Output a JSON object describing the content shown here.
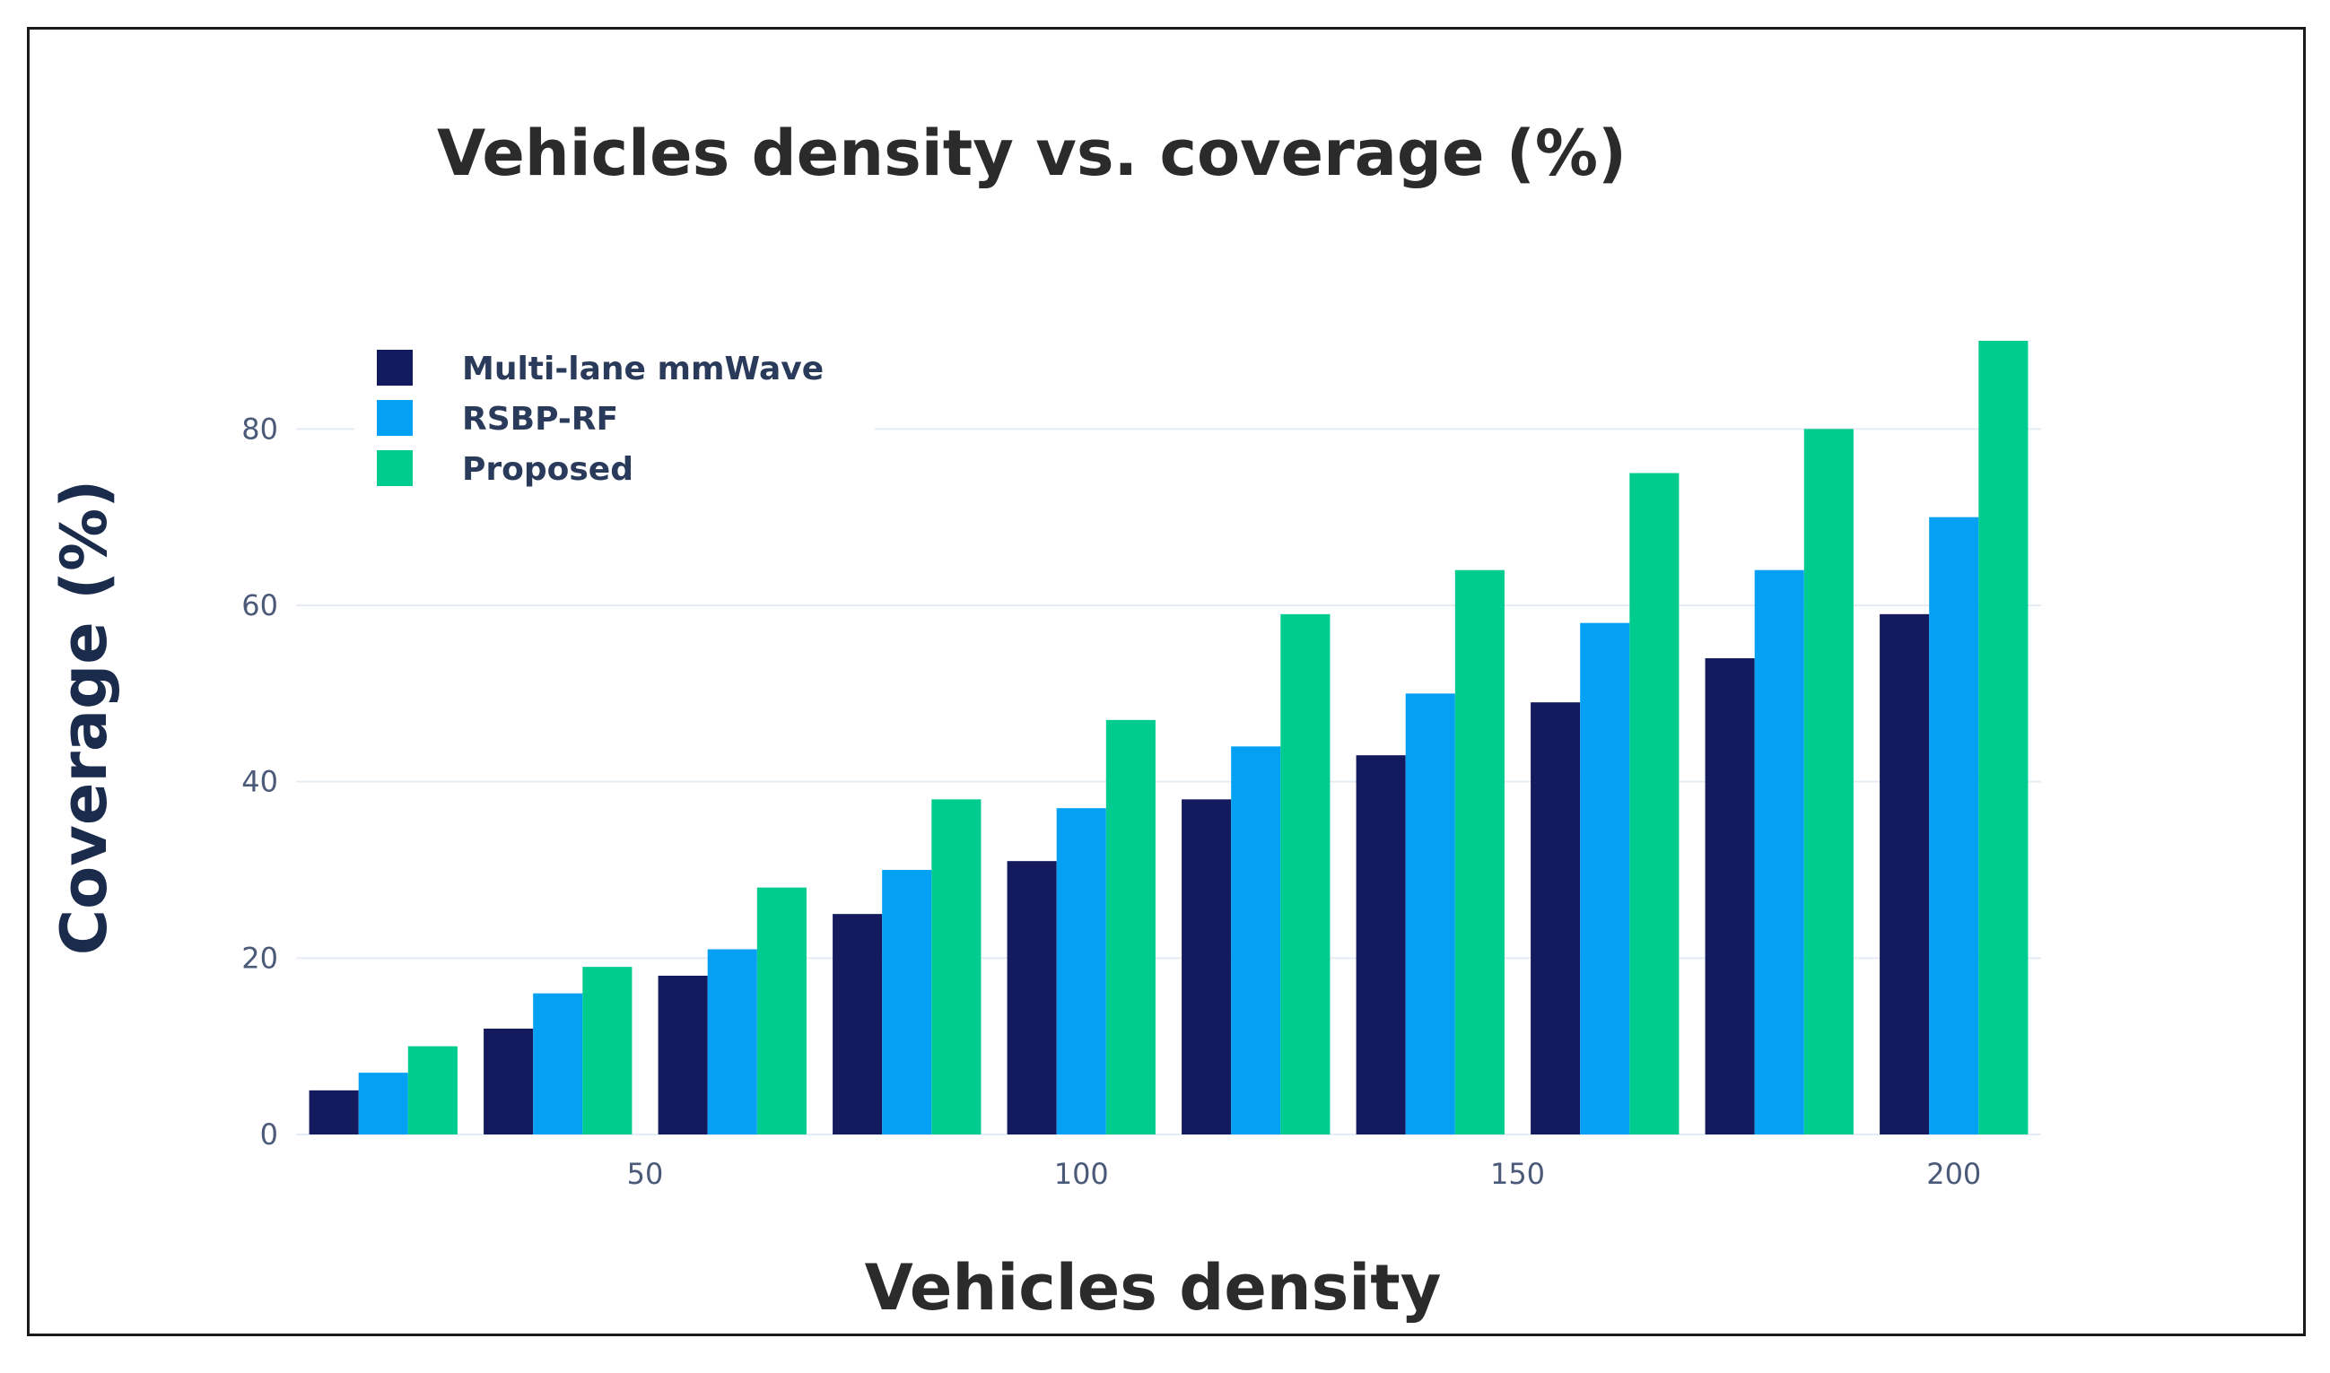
{
  "chart_data": {
    "type": "bar",
    "title": "Vehicles density vs. coverage (%)",
    "xlabel": "Vehicles density",
    "ylabel": "Coverage (%)",
    "x": [
      20,
      40,
      60,
      80,
      100,
      120,
      140,
      160,
      180,
      200
    ],
    "x_ticks": [
      50,
      100,
      150,
      200
    ],
    "x_tick_labels": [
      "50",
      "100",
      "150",
      "200"
    ],
    "xlim": [
      10,
      210
    ],
    "ylim": [
      0,
      90
    ],
    "y_ticks": [
      0,
      20,
      40,
      60,
      80
    ],
    "y_tick_labels": [
      "0",
      "20",
      "40",
      "60",
      "80"
    ],
    "grid": true,
    "legend_position": "top-left",
    "series": [
      {
        "name": "Multi-lane mmWave",
        "color": "#141a5e",
        "values": [
          5,
          12,
          18,
          25,
          31,
          38,
          43,
          49,
          54,
          59
        ]
      },
      {
        "name": "RSBP-RF",
        "color": "#03a0f4",
        "values": [
          7,
          16,
          21,
          30,
          37,
          44,
          50,
          58,
          64,
          70
        ]
      },
      {
        "name": "Proposed",
        "color": "#00cc8f",
        "values": [
          10,
          19,
          28,
          38,
          47,
          59,
          64,
          75,
          80,
          90
        ]
      }
    ]
  }
}
